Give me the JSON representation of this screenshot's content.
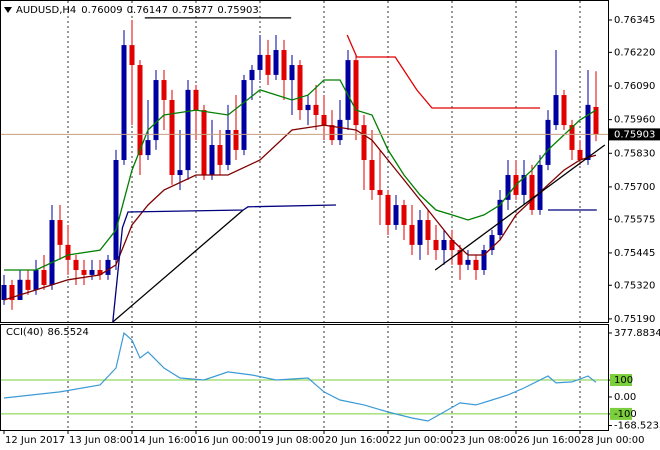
{
  "chart_data": [
    {
      "type": "candlestick",
      "symbol": "AUDUSD,H4",
      "xlim": [
        -0.5,
        75.5
      ],
      "ylim": [
        0.75178,
        0.76403
      ],
      "yticks": [
        0.76345,
        {
          "value": 0.7622,
          "label": "0.76220"
        },
        {
          "value": 0.7609,
          "label": "0.76090"
        },
        {
          "value": 0.7596,
          "label": "0.75960"
        },
        {
          "value": 0.7583,
          "label": "0.75830"
        },
        {
          "value": 0.757,
          "label": "0.75700"
        },
        0.75575,
        0.75445,
        {
          "value": 0.7532,
          "label": "0.75320"
        },
        {
          "value": 0.7519,
          "label": "0.75190"
        }
      ],
      "xticks": [
        {
          "value": 0,
          "label": "12 Jun 2017"
        },
        {
          "value": 8,
          "label": "13 Jun 08:00"
        },
        {
          "value": 16,
          "label": "14 Jun 16:00"
        },
        {
          "value": 24,
          "label": "16 Jun 00:00"
        },
        {
          "value": 32,
          "label": "19 Jun 08:00"
        },
        {
          "value": 40,
          "label": "20 Jun 16:00"
        },
        {
          "value": 48,
          "label": "22 Jun 00:00"
        },
        {
          "value": 56,
          "label": "23 Jun 08:00"
        },
        {
          "value": 64,
          "label": "26 Jun 16:00"
        },
        {
          "value": 72,
          "label": "28 Jun 00:00"
        }
      ],
      "bull_color": "#0000a0",
      "bear_color": "#e00000",
      "price_line_color": "#c8a080",
      "open": [
        0.75263,
        0.75321,
        0.75263,
        0.75341,
        0.75302,
        0.75379,
        0.75321,
        0.75572,
        0.75476,
        0.75418,
        0.75379,
        0.7536,
        0.75379,
        0.7536,
        0.75418,
        0.75804,
        0.76248,
        0.76171,
        0.75823,
        0.75881,
        0.76113,
        0.76036,
        0.75746,
        0.75765,
        0.76075,
        0.75997,
        0.75746,
        0.75862,
        0.75785,
        0.7592,
        0.75843,
        0.76113,
        0.76152,
        0.7621,
        0.76133,
        0.76229,
        0.76113,
        0.76171,
        0.75997,
        0.76017,
        0.75978,
        0.75939,
        0.75881,
        0.75959,
        0.7619,
        0.75939,
        0.75804,
        0.75688,
        0.75669,
        0.75553,
        0.7563,
        0.75553,
        0.75476,
        0.75572,
        0.75495,
        0.75456,
        0.75495,
        0.75456,
        0.75399,
        0.75418,
        0.75379,
        0.75456,
        0.75514,
        0.7565,
        0.75746,
        0.75669,
        0.75746,
        0.75611,
        0.75785,
        0.75939,
        0.76055,
        0.75939,
        0.75843,
        0.75804,
        0.76009
      ],
      "high": [
        0.7536,
        0.75341,
        0.75379,
        0.75379,
        0.75418,
        0.75437,
        0.7563,
        0.7563,
        0.75553,
        0.75437,
        0.75418,
        0.75418,
        0.75418,
        0.75437,
        0.75843,
        0.76306,
        0.76345,
        0.7619,
        0.76036,
        0.76152,
        0.76152,
        0.76075,
        0.7592,
        0.76113,
        0.76094,
        0.76017,
        0.75959,
        0.7592,
        0.76017,
        0.76055,
        0.76133,
        0.76171,
        0.76287,
        0.76268,
        0.76287,
        0.76268,
        0.7621,
        0.7619,
        0.76055,
        0.76094,
        0.76055,
        0.75997,
        0.76036,
        0.76229,
        0.7621,
        0.75978,
        0.7592,
        0.75843,
        0.75688,
        0.75669,
        0.7565,
        0.7563,
        0.75611,
        0.75611,
        0.75553,
        0.75534,
        0.75534,
        0.75476,
        0.75456,
        0.75437,
        0.75476,
        0.75534,
        0.75688,
        0.75804,
        0.75804,
        0.75804,
        0.75785,
        0.75823,
        0.75997,
        0.76229,
        0.76075,
        0.75959,
        0.75881,
        0.76152,
        0.76147
      ],
      "low": [
        0.75244,
        0.75225,
        0.75263,
        0.75283,
        0.75283,
        0.75302,
        0.75302,
        0.75418,
        0.7536,
        0.75321,
        0.75321,
        0.75341,
        0.75341,
        0.75341,
        0.75379,
        0.75785,
        0.75939,
        0.75746,
        0.75804,
        0.75843,
        0.7592,
        0.75708,
        0.75688,
        0.75727,
        0.75881,
        0.75727,
        0.75727,
        0.75746,
        0.75765,
        0.75804,
        0.75823,
        0.76036,
        0.76113,
        0.76094,
        0.76113,
        0.76036,
        0.75978,
        0.75959,
        0.75939,
        0.7592,
        0.75881,
        0.75862,
        0.75862,
        0.7592,
        0.75881,
        0.75688,
        0.7565,
        0.75553,
        0.75514,
        0.75534,
        0.75495,
        0.75437,
        0.75418,
        0.75437,
        0.75418,
        0.75399,
        0.75399,
        0.75341,
        0.75379,
        0.75341,
        0.7536,
        0.75437,
        0.75495,
        0.75611,
        0.7565,
        0.7563,
        0.75592,
        0.75592,
        0.75765,
        0.7592,
        0.7592,
        0.75804,
        0.75785,
        0.75785,
        0.75877
      ],
      "close": [
        0.75321,
        0.75263,
        0.75341,
        0.75302,
        0.75379,
        0.75321,
        0.75572,
        0.75476,
        0.75418,
        0.75379,
        0.7536,
        0.75379,
        0.7536,
        0.75418,
        0.75804,
        0.76248,
        0.76171,
        0.75823,
        0.75881,
        0.76113,
        0.76036,
        0.75746,
        0.75765,
        0.76075,
        0.75997,
        0.75746,
        0.75862,
        0.75785,
        0.7592,
        0.75843,
        0.76113,
        0.76152,
        0.7621,
        0.76133,
        0.76229,
        0.76113,
        0.76171,
        0.75997,
        0.76017,
        0.75978,
        0.75939,
        0.75881,
        0.75959,
        0.7619,
        0.75939,
        0.75804,
        0.75688,
        0.75669,
        0.75553,
        0.7563,
        0.75553,
        0.75476,
        0.75572,
        0.75495,
        0.75456,
        0.75495,
        0.75456,
        0.75399,
        0.75418,
        0.75379,
        0.75456,
        0.75514,
        0.7565,
        0.75746,
        0.75669,
        0.75746,
        0.75611,
        0.75785,
        0.75959,
        0.76055,
        0.75939,
        0.75843,
        0.75804,
        0.76017,
        0.75903
      ],
      "lines": [
        {
          "color": "#008000",
          "x": [
            0,
            4,
            8,
            12,
            14,
            16,
            18,
            20,
            24,
            28,
            32,
            36,
            38,
            40,
            42,
            44,
            46,
            48,
            50,
            52,
            54,
            56,
            58,
            60,
            62,
            64,
            66,
            68,
            70,
            72,
            74
          ],
          "values": [
            0.75379,
            0.75379,
            0.75437,
            0.75456,
            0.75534,
            0.75765,
            0.7592,
            0.75978,
            0.75997,
            0.75978,
            0.76075,
            0.76036,
            0.76055,
            0.76113,
            0.76113,
            0.75997,
            0.75978,
            0.75843,
            0.75746,
            0.75669,
            0.75611,
            0.75592,
            0.75572,
            0.75592,
            0.7563,
            0.75708,
            0.75765,
            0.75843,
            0.75901,
            0.75959,
            0.75997
          ]
        },
        {
          "color": "#800000",
          "x": [
            0,
            4,
            8,
            12,
            14,
            16,
            18,
            20,
            24,
            28,
            32,
            36,
            40,
            44,
            46,
            48,
            50,
            52,
            54,
            56,
            58,
            60,
            62,
            64,
            66,
            68,
            70,
            72,
            74
          ],
          "values": [
            0.75263,
            0.75302,
            0.75341,
            0.7536,
            0.75399,
            0.75553,
            0.7563,
            0.75688,
            0.75746,
            0.75746,
            0.75804,
            0.7592,
            0.75939,
            0.7592,
            0.75881,
            0.75804,
            0.75727,
            0.7565,
            0.75572,
            0.75495,
            0.75437,
            0.75437,
            0.75495,
            0.75592,
            0.7565,
            0.75708,
            0.75765,
            0.75804,
            0.75823
          ]
        },
        {
          "color": "#000000",
          "x": [
            17.6,
            35.9
          ],
          "values": [
            0.76353,
            0.76353
          ]
        },
        {
          "color": "#000000",
          "x": [
            13.6,
            29.9
          ],
          "values": [
            0.75178,
            0.75611
          ]
        },
        {
          "color": "#000000",
          "x": [
            53.9,
            75.1
          ],
          "values": [
            0.75379,
            0.75862
          ]
        },
        {
          "color": "#000080",
          "x": [
            13.6,
            14.8,
            15.5,
            29.9,
            30.5,
            41.5
          ],
          "values": [
            0.75178,
            0.75542,
            0.75603,
            0.75611,
            0.75623,
            0.7563
          ]
        },
        {
          "color": "#e00000",
          "x": [
            42.9,
            44.1,
            48.9,
            51.6,
            53.5,
            67
          ],
          "values": [
            0.76287,
            0.76202,
            0.76202,
            0.76075,
            0.76005,
            0.76005
          ]
        },
        {
          "color": "#000080",
          "x": [
            68,
            74.1
          ],
          "values": [
            0.75611,
            0.75611
          ]
        }
      ]
    },
    {
      "type": "line",
      "title": "CCI(40)",
      "xlim": [
        -0.5,
        75.5
      ],
      "ylim": [
        -195,
        425
      ],
      "yticks": [
        377.8834,
        100,
        {
          "value": 0,
          "label": "0.00"
        },
        -100,
        -168.5233
      ],
      "levels": [
        100,
        -100
      ],
      "level_color": "#7ccf3c",
      "color": "#3b9ad6",
      "x": [
        0,
        7,
        12,
        14,
        15,
        16,
        17,
        18,
        20,
        22,
        25,
        28,
        31,
        34,
        38,
        40,
        42,
        45,
        48,
        51,
        53,
        55,
        57,
        59,
        61,
        63,
        65,
        67,
        68,
        69,
        71,
        73,
        74
      ],
      "values": [
        -6,
        30,
        71,
        171,
        378,
        336,
        230,
        266,
        171,
        112,
        100,
        148,
        130,
        100,
        112,
        30,
        -18,
        -47,
        -89,
        -124,
        -142,
        -89,
        -35,
        -47,
        -18,
        12,
        53,
        100,
        124,
        83,
        89,
        124,
        86.5524
      ]
    }
  ]
}
